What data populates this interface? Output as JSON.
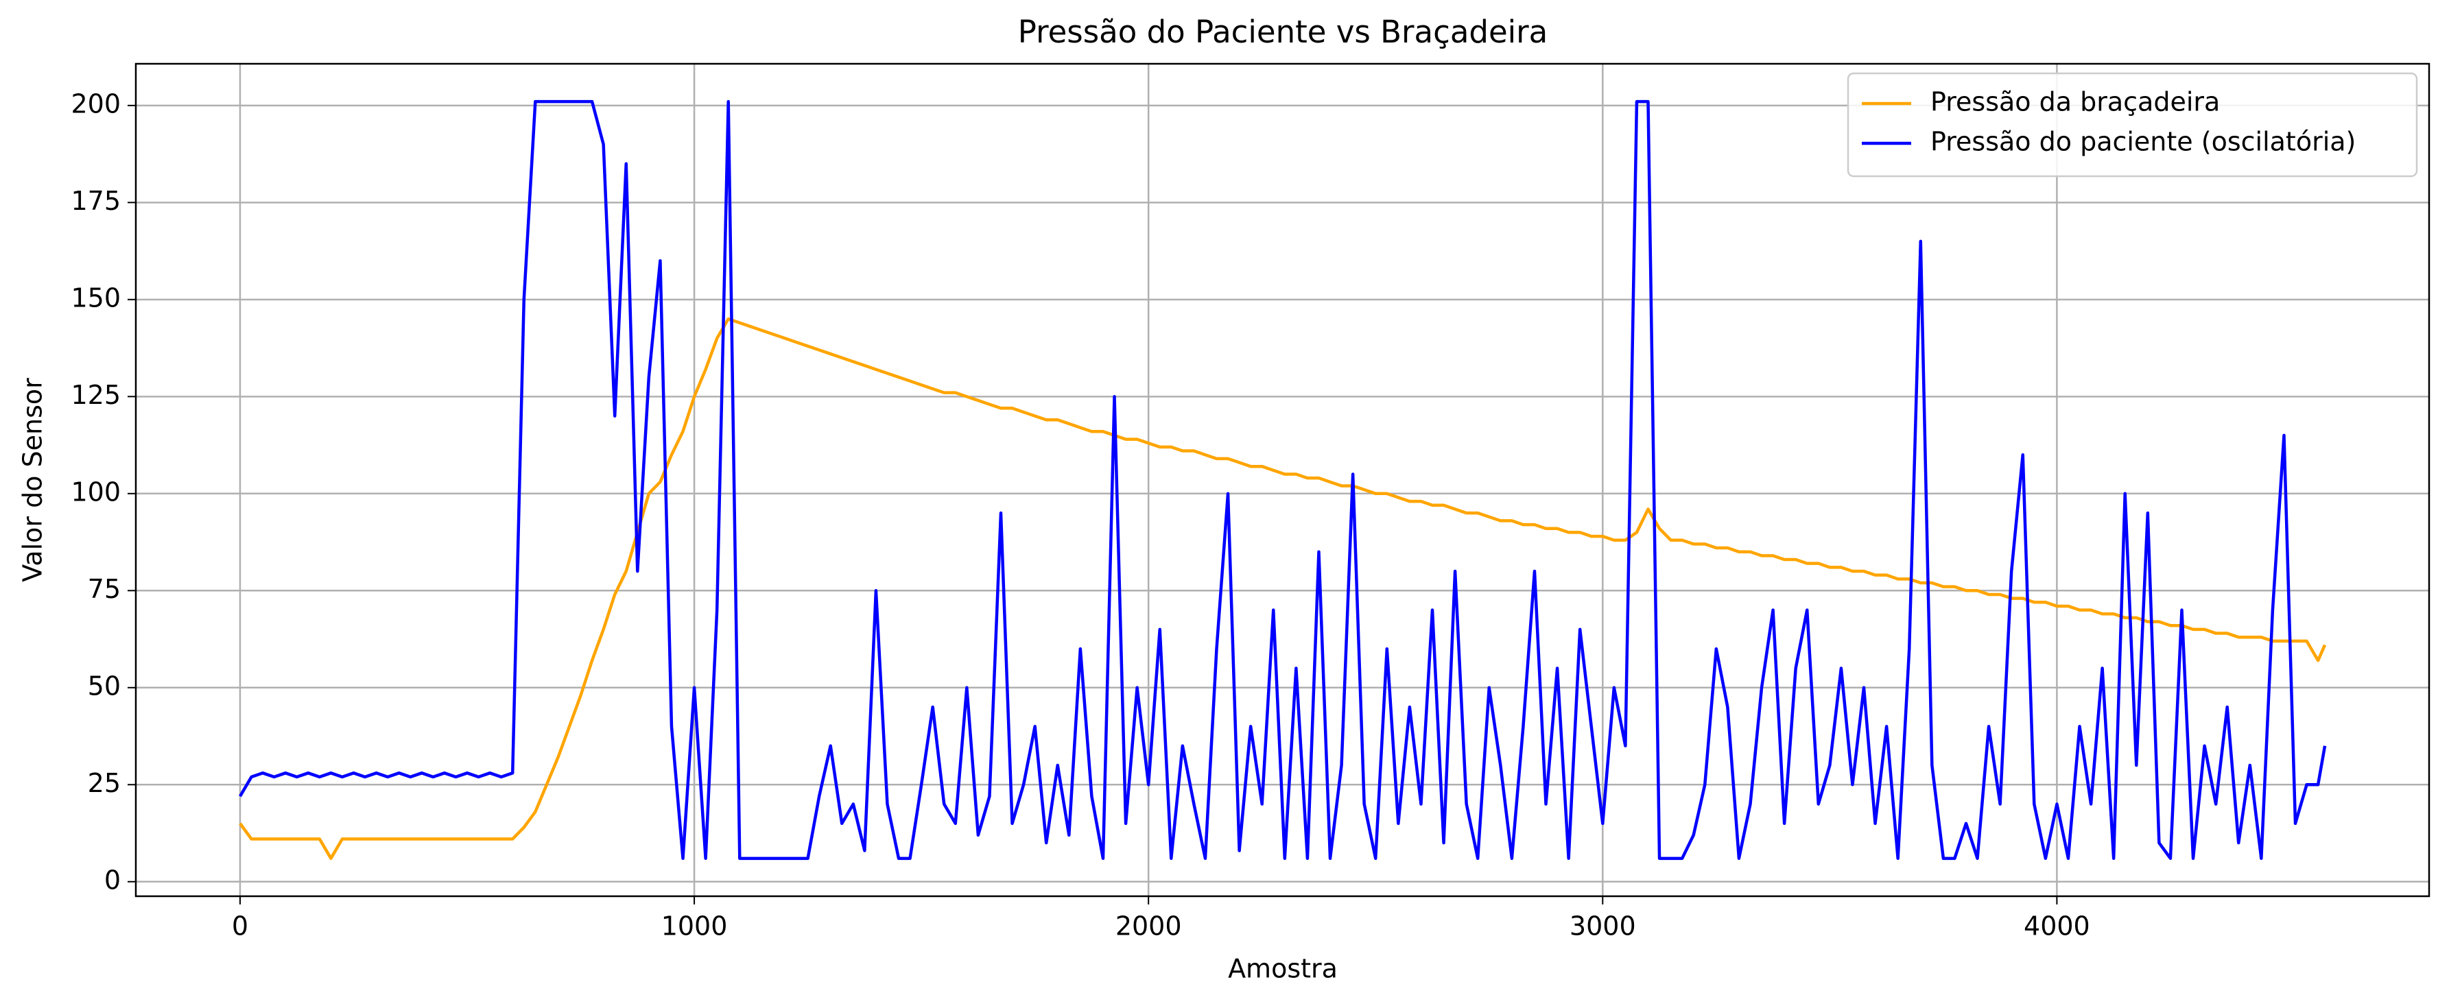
{
  "chart_data": {
    "type": "line",
    "title": "Pressão do Paciente vs Braçadeira",
    "xlabel": "Amostra",
    "ylabel": "Valor do Sensor",
    "x": [
      0,
      25,
      50,
      75,
      100,
      125,
      150,
      175,
      200,
      225,
      250,
      275,
      300,
      325,
      350,
      375,
      400,
      425,
      450,
      475,
      500,
      525,
      550,
      575,
      600,
      625,
      650,
      675,
      700,
      725,
      750,
      775,
      800,
      825,
      850,
      875,
      900,
      925,
      950,
      975,
      1000,
      1025,
      1050,
      1075,
      1100,
      1125,
      1150,
      1175,
      1200,
      1225,
      1250,
      1275,
      1300,
      1325,
      1350,
      1375,
      1400,
      1425,
      1450,
      1475,
      1500,
      1525,
      1550,
      1575,
      1600,
      1625,
      1650,
      1675,
      1700,
      1725,
      1750,
      1775,
      1800,
      1825,
      1850,
      1875,
      1900,
      1925,
      1950,
      1975,
      2000,
      2025,
      2050,
      2075,
      2100,
      2125,
      2150,
      2175,
      2200,
      2225,
      2250,
      2275,
      2300,
      2325,
      2350,
      2375,
      2400,
      2425,
      2450,
      2475,
      2500,
      2525,
      2550,
      2575,
      2600,
      2625,
      2650,
      2675,
      2700,
      2725,
      2750,
      2775,
      2800,
      2825,
      2850,
      2875,
      2900,
      2925,
      2950,
      2975,
      3000,
      3025,
      3050,
      3075,
      3100,
      3125,
      3150,
      3175,
      3200,
      3225,
      3250,
      3275,
      3300,
      3325,
      3350,
      3375,
      3400,
      3425,
      3450,
      3475,
      3500,
      3525,
      3550,
      3575,
      3600,
      3625,
      3650,
      3675,
      3700,
      3725,
      3750,
      3775,
      3800,
      3825,
      3850,
      3875,
      3900,
      3925,
      3950,
      3975,
      4000,
      4025,
      4050,
      4075,
      4100,
      4125,
      4150,
      4175,
      4200,
      4225,
      4250,
      4275,
      4300,
      4325,
      4350,
      4375,
      4400,
      4425,
      4450,
      4475,
      4500,
      4525,
      4550,
      4575,
      4590
    ],
    "series": [
      {
        "name": "Pressão da braçadeira",
        "color": "#ffa500",
        "values": [
          15,
          11,
          11,
          11,
          11,
          11,
          11,
          11,
          6,
          11,
          11,
          11,
          11,
          11,
          11,
          11,
          11,
          11,
          11,
          11,
          11,
          11,
          11,
          11,
          11,
          14,
          18,
          25,
          32,
          40,
          48,
          57,
          65,
          74,
          80,
          90,
          100,
          103,
          110,
          116,
          125,
          132,
          140,
          145,
          144,
          143,
          142,
          141,
          140,
          139,
          138,
          137,
          136,
          135,
          134,
          133,
          132,
          131,
          130,
          129,
          128,
          127,
          126,
          126,
          125,
          124,
          123,
          122,
          122,
          121,
          120,
          119,
          119,
          118,
          117,
          116,
          116,
          115,
          114,
          114,
          113,
          112,
          112,
          111,
          111,
          110,
          109,
          109,
          108,
          107,
          107,
          106,
          105,
          105,
          104,
          104,
          103,
          102,
          102,
          101,
          100,
          100,
          99,
          98,
          98,
          97,
          97,
          96,
          95,
          95,
          94,
          93,
          93,
          92,
          92,
          91,
          91,
          90,
          90,
          89,
          89,
          88,
          88,
          90,
          96,
          91,
          88,
          88,
          87,
          87,
          86,
          86,
          85,
          85,
          84,
          84,
          83,
          83,
          82,
          82,
          81,
          81,
          80,
          80,
          79,
          79,
          78,
          78,
          77,
          77,
          76,
          76,
          75,
          75,
          74,
          74,
          73,
          73,
          72,
          72,
          71,
          71,
          70,
          70,
          69,
          69,
          68,
          68,
          67,
          67,
          66,
          66,
          65,
          65,
          64,
          64,
          63,
          63,
          63,
          62,
          62,
          62,
          62,
          57,
          61
        ]
      },
      {
        "name": "Pressão do paciente (oscilatória)",
        "color": "#0000ff",
        "values": [
          22,
          27,
          28,
          27,
          28,
          27,
          28,
          27,
          28,
          27,
          28,
          27,
          28,
          27,
          28,
          27,
          28,
          27,
          28,
          27,
          28,
          27,
          28,
          27,
          28,
          150,
          201,
          201,
          201,
          201,
          201,
          201,
          190,
          120,
          185,
          80,
          130,
          160,
          40,
          6,
          50,
          6,
          70,
          201,
          6,
          6,
          6,
          6,
          6,
          6,
          6,
          22,
          35,
          15,
          20,
          8,
          75,
          20,
          6,
          6,
          25,
          45,
          20,
          15,
          50,
          12,
          22,
          95,
          15,
          25,
          40,
          10,
          30,
          12,
          60,
          22,
          6,
          125,
          15,
          50,
          25,
          65,
          6,
          35,
          20,
          6,
          60,
          100,
          8,
          40,
          20,
          70,
          6,
          55,
          6,
          85,
          6,
          30,
          105,
          20,
          6,
          60,
          15,
          45,
          20,
          70,
          10,
          80,
          20,
          6,
          50,
          30,
          6,
          40,
          80,
          20,
          55,
          6,
          65,
          40,
          15,
          50,
          35,
          201,
          201,
          6,
          6,
          6,
          12,
          25,
          60,
          45,
          6,
          20,
          50,
          70,
          15,
          55,
          70,
          20,
          30,
          55,
          25,
          50,
          15,
          40,
          6,
          60,
          165,
          30,
          6,
          6,
          15,
          6,
          40,
          20,
          80,
          110,
          20,
          6,
          20,
          6,
          40,
          20,
          55,
          6,
          100,
          30,
          95,
          10,
          6,
          70,
          6,
          35,
          20,
          45,
          10,
          30,
          6,
          70,
          115,
          15,
          25,
          25,
          35
        ]
      }
    ],
    "xlim": [
      -229.5,
      4819.5
    ],
    "ylim": [
      -3.75,
      210.75
    ],
    "xticks": [
      0,
      1000,
      2000,
      3000,
      4000
    ],
    "yticks": [
      0,
      25,
      50,
      75,
      100,
      125,
      150,
      175,
      200
    ],
    "grid": true,
    "legend": "upper right"
  }
}
